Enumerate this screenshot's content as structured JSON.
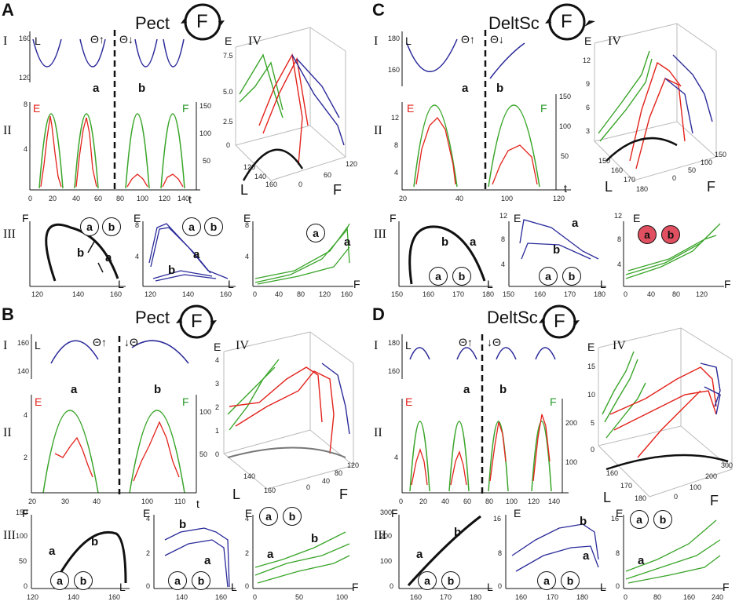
{
  "colors": {
    "red": "#e3221b",
    "green": "#3aa52a",
    "blue": "#2a2a9a",
    "black": "#111111",
    "pink": "#e05060"
  },
  "panels": [
    {
      "letter": "A",
      "muscle": "Pect",
      "force_symbol": "F",
      "row_labels": [
        "I",
        "II",
        "III"
      ],
      "row4": "IV",
      "theta_up": "Θ↑",
      "theta_down": "Θ↓",
      "L": "L",
      "E": "E",
      "F": "F",
      "t": "t",
      "a": "a",
      "b": "b",
      "left_l_ticks": [
        "160",
        "120"
      ],
      "left_e_ticks": [
        "8",
        "4"
      ],
      "right_f_ticks": [
        "150",
        "100",
        "50"
      ],
      "x_ticks": [
        "0",
        "20",
        "40",
        "60",
        "80",
        "100",
        "120",
        "140"
      ],
      "fl_xticks": [
        "120",
        "140",
        "160"
      ],
      "el_xticks": [
        "120",
        "140",
        "160"
      ],
      "ef_xticks": [
        "0",
        "40",
        "80",
        "120",
        "160"
      ],
      "el_yticks": [
        "8",
        "4"
      ],
      "ef_yticks": [
        "8",
        "4"
      ],
      "z3d_ticks": [
        "7.5",
        "5.0",
        "2.5",
        "0"
      ],
      "l3d_ticks": [
        "160",
        "140",
        "120"
      ],
      "f3d_ticks": [
        "0",
        "60",
        "120"
      ]
    },
    {
      "letter": "C",
      "muscle": "DeltSc",
      "force_symbol": "F",
      "row_labels": [
        "I",
        "II",
        "III"
      ],
      "row4": "IV",
      "theta_up": "Θ↑",
      "theta_down": "Θ↓",
      "L": "L",
      "E": "E",
      "F": "F",
      "t": "t",
      "a": "a",
      "b": "b",
      "left_l_ticks": [
        "180",
        "160"
      ],
      "left_e_ticks": [
        "12",
        "8",
        "4"
      ],
      "right_f_ticks": [
        "150",
        "100",
        "50"
      ],
      "x_ticks": [
        "20",
        "40",
        "100",
        "120"
      ],
      "fl_xticks": [
        "150",
        "160",
        "170",
        "180"
      ],
      "el_xticks": [
        "150",
        "160",
        "170",
        "180"
      ],
      "ef_xticks": [
        "0",
        "40",
        "80",
        "120"
      ],
      "el_yticks": [
        "12",
        "8",
        "4"
      ],
      "ef_yticks": [
        "12",
        "8",
        "4"
      ],
      "z3d_ticks": [
        "12",
        "9",
        "6",
        "3"
      ],
      "l3d_ticks": [
        "150",
        "160",
        "170",
        "180"
      ],
      "f3d_ticks": [
        "0",
        "50",
        "100",
        "150"
      ]
    },
    {
      "letter": "B",
      "muscle": "Pect",
      "force_symbol": "F",
      "row_labels": [
        "I",
        "II",
        "III"
      ],
      "row4": "IV",
      "theta_up": "Θ↑",
      "theta_down": "↓Θ",
      "L": "L",
      "E": "E",
      "F": "F",
      "t": "t",
      "a": "a",
      "b": "b",
      "left_l_ticks": [
        "160",
        "140"
      ],
      "left_e_ticks": [
        "4",
        "2"
      ],
      "right_f_ticks": [
        "100",
        "50"
      ],
      "x_ticks": [
        "20",
        "30",
        "40",
        "100",
        "110"
      ],
      "fl_xticks": [
        "120",
        "140",
        "160"
      ],
      "el_xticks": [
        "140",
        "160"
      ],
      "ef_xticks": [
        "0",
        "50",
        "100"
      ],
      "el_yticks": [
        "4",
        "2",
        "0"
      ],
      "ef_yticks": [
        "4",
        "2",
        "0"
      ],
      "fl_yticks": [
        "150",
        "100",
        "50",
        "0"
      ],
      "z3d_ticks": [
        "4",
        "3",
        "2",
        "1",
        "0"
      ],
      "l3d_ticks": [
        "140",
        "160"
      ],
      "f3d_ticks": [
        "0",
        "40",
        "80",
        "120"
      ]
    },
    {
      "letter": "D",
      "muscle": "DeltSc",
      "force_symbol": "F",
      "row_labels": [
        "I",
        "II",
        "III"
      ],
      "row4": "IV",
      "theta_up": "Θ↑",
      "theta_down": "↓Θ",
      "L": "L",
      "E": "E",
      "F": "F",
      "t": "t",
      "a": "a",
      "b": "b",
      "left_l_ticks": [
        "180",
        "160"
      ],
      "left_e_ticks": [
        "4"
      ],
      "right_f_ticks": [
        "200",
        "100"
      ],
      "x_ticks": [
        "0",
        "20",
        "40",
        "60",
        "80",
        "100",
        "120",
        "140"
      ],
      "fl_xticks": [
        "160",
        "170",
        "180"
      ],
      "el_xticks": [
        "160",
        "170",
        "180"
      ],
      "ef_xticks": [
        "0",
        "80",
        "160",
        "240"
      ],
      "el_yticks": [
        "16",
        "8",
        "0"
      ],
      "ef_yticks": [
        "16",
        "8",
        "0"
      ],
      "fl_yticks": [
        "300",
        "200",
        "100",
        "0"
      ],
      "z3d_ticks": [
        "15",
        "10",
        "5",
        "0"
      ],
      "l3d_ticks": [
        "160",
        "170",
        "180"
      ],
      "f3d_ticks": [
        "0",
        "100",
        "200",
        "300"
      ]
    }
  ]
}
